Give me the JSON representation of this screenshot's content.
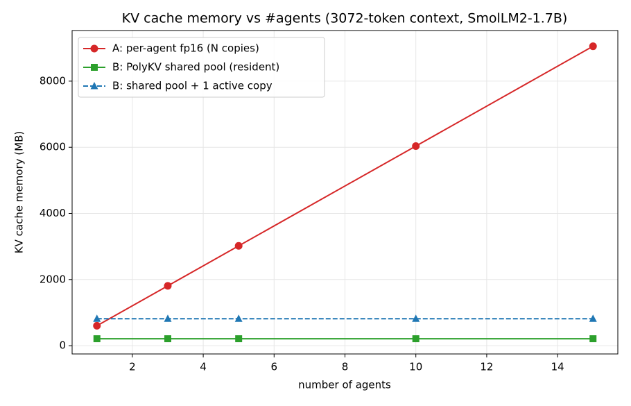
{
  "chart_data": {
    "type": "line",
    "title": "KV cache memory vs #agents (3072-token context, SmolLM2-1.7B)",
    "x_label": "number of agents",
    "y_label": "KV cache memory (MB)",
    "x": [
      1,
      3,
      5,
      10,
      15
    ],
    "series": [
      {
        "name": "A: per-agent fp16 (N copies)",
        "color": "#d62728",
        "marker": "circle",
        "dashed": false,
        "values": [
          603,
          1810,
          3018,
          6036,
          9054
        ]
      },
      {
        "name": "B: PolyKV shared pool (resident)",
        "color": "#2ca02c",
        "marker": "square",
        "dashed": false,
        "values": [
          210,
          210,
          210,
          210,
          210
        ]
      },
      {
        "name": "B: shared pool + 1 active copy",
        "color": "#1f77b4",
        "marker": "triangle",
        "dashed": true,
        "values": [
          814,
          814,
          814,
          814,
          814
        ]
      }
    ],
    "xlim": [
      0.3,
      15.7
    ],
    "ylim": [
      -250,
      9530
    ],
    "xticks": [
      2,
      4,
      6,
      8,
      10,
      12,
      14
    ],
    "yticks": [
      0,
      2000,
      4000,
      6000,
      8000
    ],
    "grid": true,
    "legend": "upper left"
  }
}
